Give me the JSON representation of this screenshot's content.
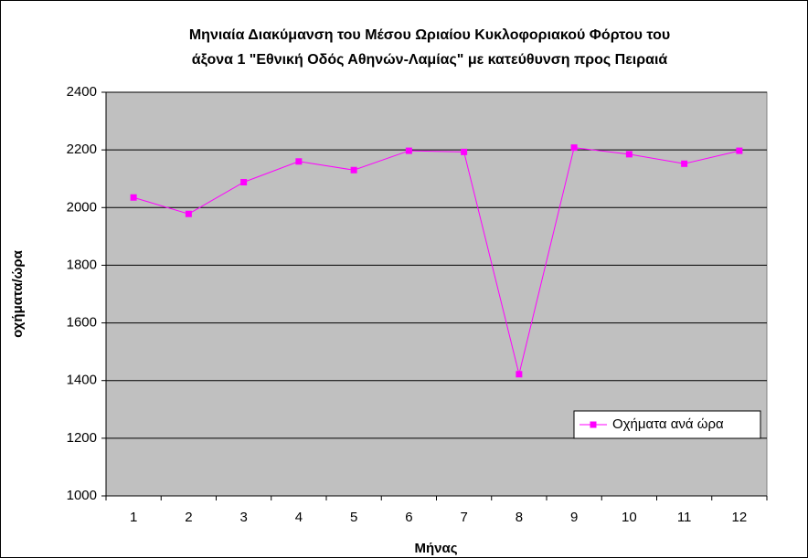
{
  "chart_data": {
    "type": "line",
    "title": [
      "Μηνιαία Διακύμανση του Μέσου Ωριαίου Κυκλοφοριακού Φόρτου του",
      "άξονα 1 \"Εθνική Οδός Αθηνών-Λαμίας\" με κατεύθυνση προς Πειραιά"
    ],
    "x_label": "Μήνας",
    "y_label": "οχήματα/ώρα",
    "categories": [
      "1",
      "2",
      "3",
      "4",
      "5",
      "6",
      "7",
      "8",
      "9",
      "10",
      "11",
      "12"
    ],
    "series": [
      {
        "name": "Οχήματα ανά ώρα",
        "color": "#ff00ff",
        "values": [
          2035,
          1978,
          2088,
          2160,
          2130,
          2197,
          2193,
          1422,
          2208,
          2185,
          2152,
          2197
        ]
      }
    ],
    "ylim": [
      1000,
      2400
    ],
    "yticks": [
      1000,
      1200,
      1400,
      1600,
      1800,
      2000,
      2200,
      2400
    ],
    "grid": true,
    "legend": "lower right"
  }
}
